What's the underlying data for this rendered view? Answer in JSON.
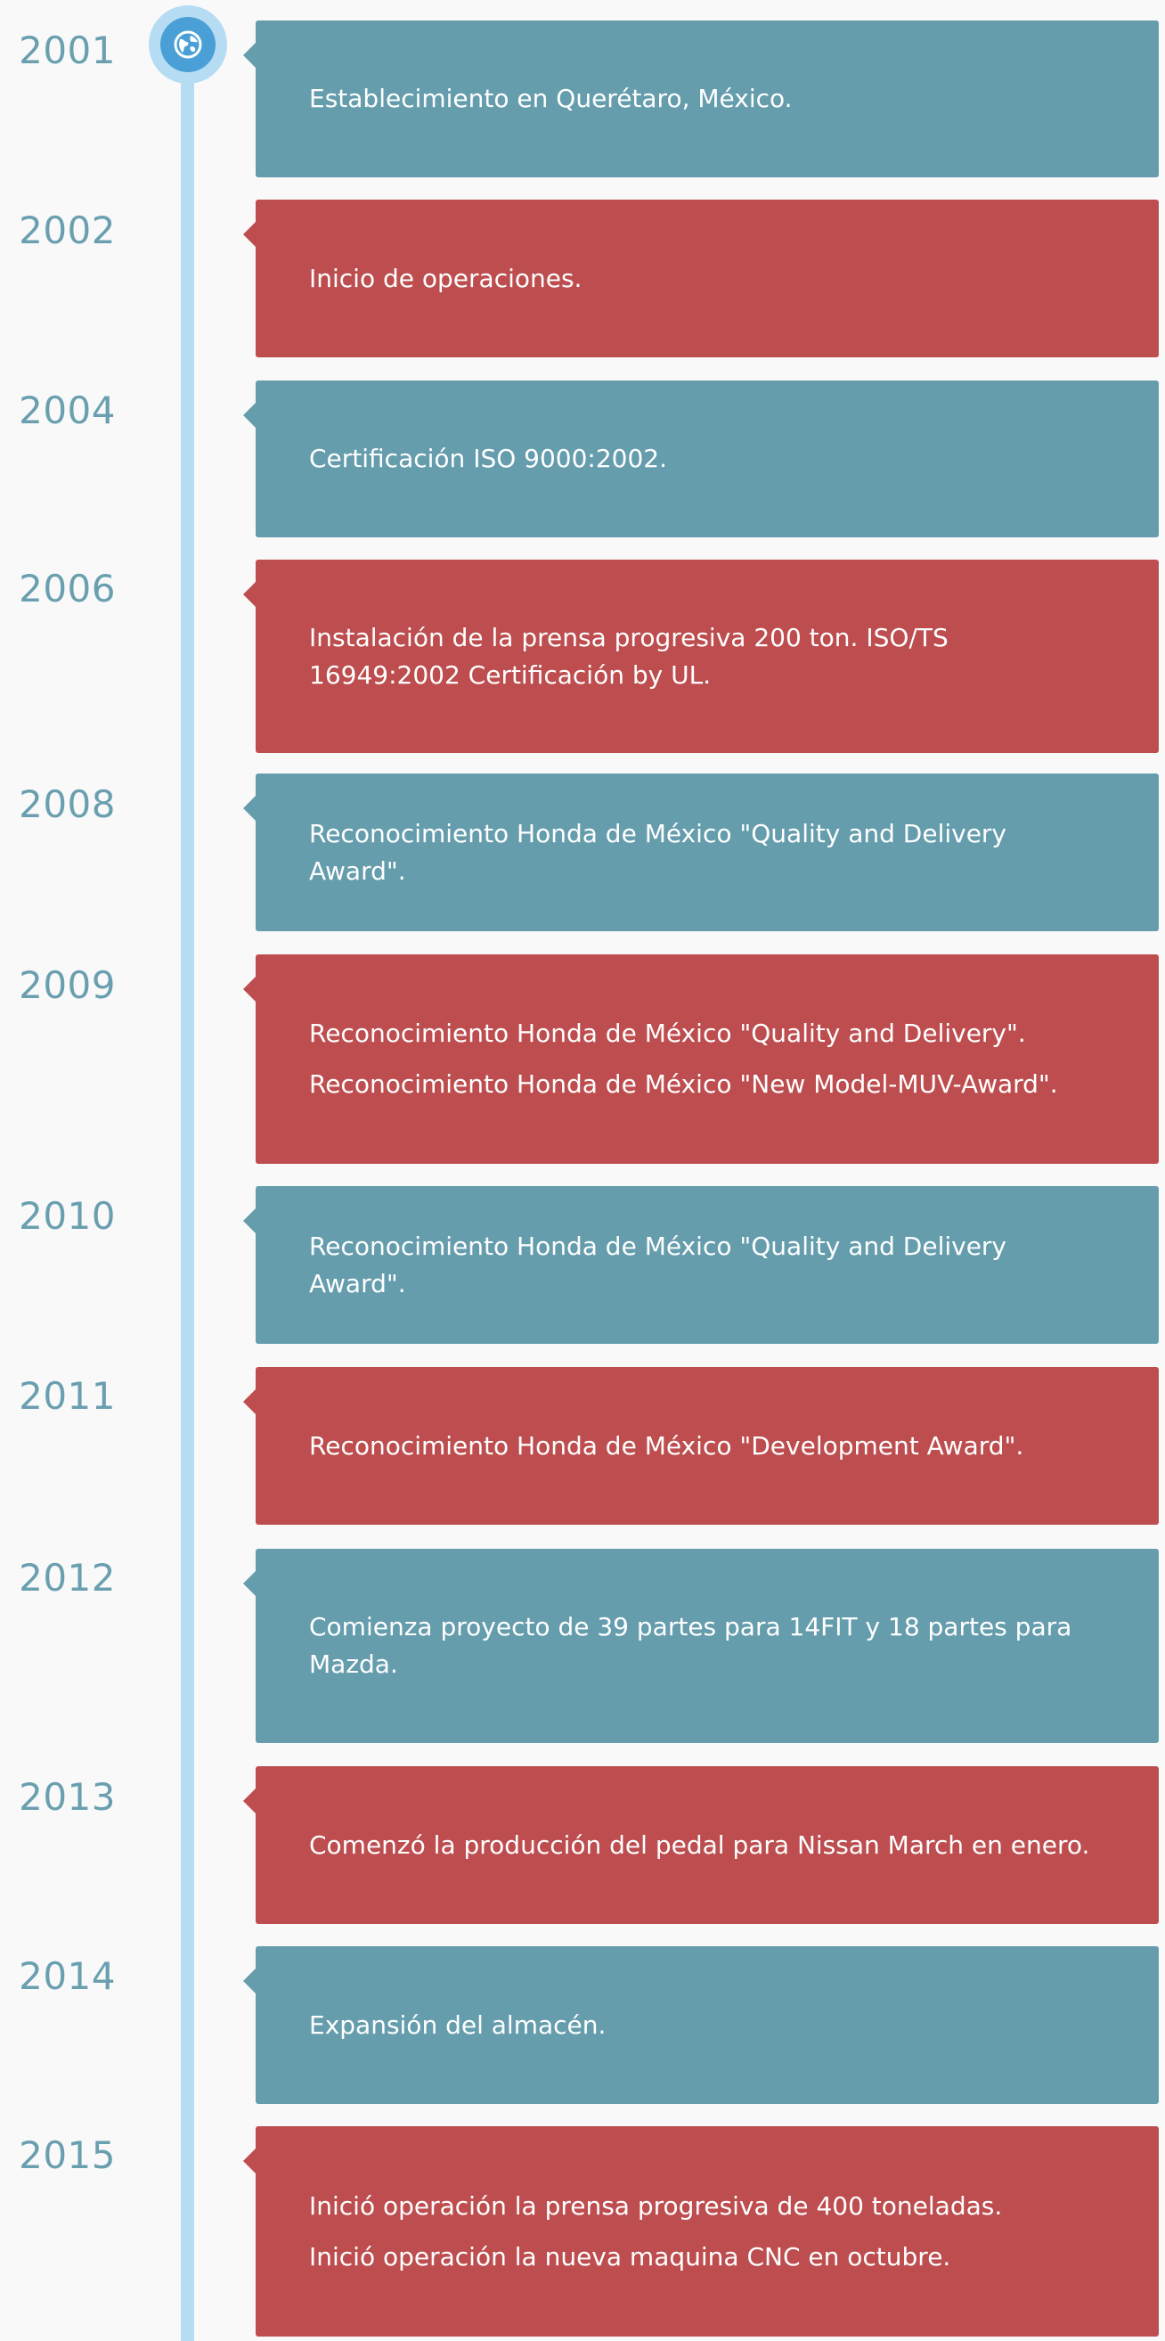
{
  "timeline": {
    "entries": [
      {
        "year": "2001",
        "color": "teal",
        "lines": [
          "Establecimiento en Querétaro, México."
        ]
      },
      {
        "year": "2002",
        "color": "red",
        "lines": [
          "Inicio de operaciones."
        ]
      },
      {
        "year": "2004",
        "color": "teal",
        "lines": [
          "Certificación ISO 9000:2002."
        ]
      },
      {
        "year": "2006",
        "color": "red",
        "lines": [
          "Instalación de la prensa progresiva 200 ton. ISO/TS 16949:2002 Certificación by UL."
        ]
      },
      {
        "year": "2008",
        "color": "teal",
        "lines": [
          "Reconocimiento Honda de México \"Quality and Delivery Award\"."
        ]
      },
      {
        "year": "2009",
        "color": "red",
        "lines": [
          "Reconocimiento Honda de México \"Quality and Delivery\".",
          "Reconocimiento Honda de México \"New Model-MUV-Award\"."
        ]
      },
      {
        "year": "2010",
        "color": "teal",
        "lines": [
          "Reconocimiento Honda de México \"Quality and Delivery Award\"."
        ]
      },
      {
        "year": "2011",
        "color": "red",
        "lines": [
          "Reconocimiento Honda de México \"Development Award\"."
        ]
      },
      {
        "year": "2012",
        "color": "teal",
        "lines": [
          "Comienza proyecto de 39 partes para 14FIT y 18 partes para Mazda."
        ]
      },
      {
        "year": "2013",
        "color": "red",
        "lines": [
          "Comenzó la producción del pedal para Nissan March en enero."
        ]
      },
      {
        "year": "2014",
        "color": "teal",
        "lines": [
          "Expansión del almacén."
        ]
      },
      {
        "year": "2015",
        "color": "red",
        "lines": [
          "Inició operación la prensa progresiva de 400 toneladas.",
          "Inició operación la nueva maquina CNC en octubre."
        ]
      }
    ]
  },
  "icons": {
    "timeline_marker": "globe-icon"
  },
  "colors": {
    "teal_card": "#659dad",
    "red_card": "#bd4d4e",
    "year_text": "#6a9fb0",
    "timeline_line": "#b6dcf4",
    "marker_inner": "#4a9fd6"
  }
}
